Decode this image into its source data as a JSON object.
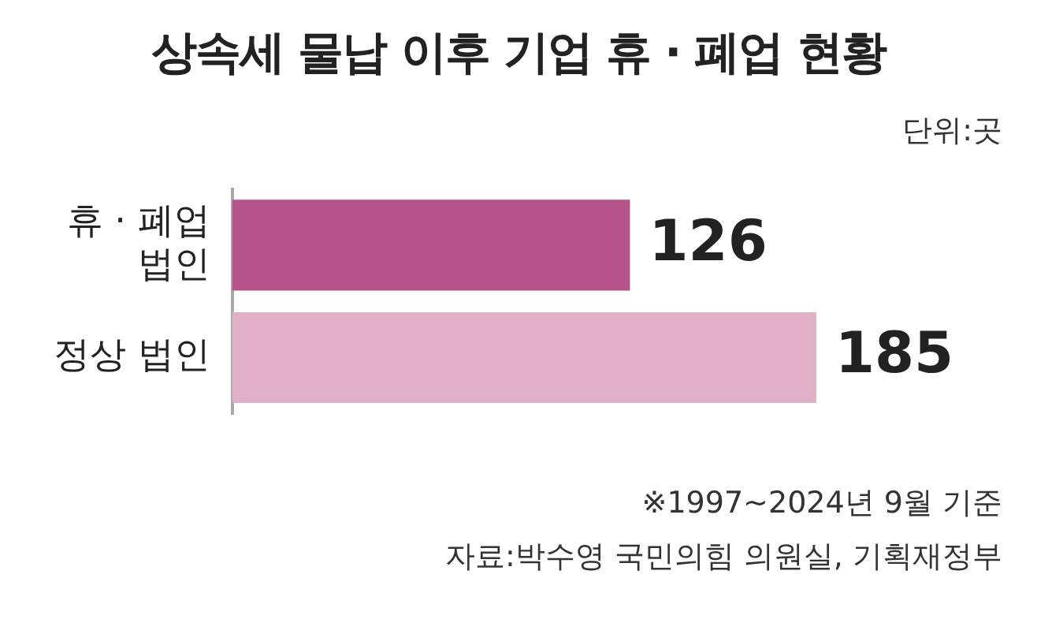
{
  "chart_data": {
    "type": "bar",
    "orientation": "horizontal",
    "title": "상속세 물납 이후 기업 휴 · 폐업 현황",
    "subtitle": "단위:곳",
    "categories": [
      "휴 · 폐업 법인",
      "정상 법인"
    ],
    "values": [
      126,
      185
    ],
    "colors": [
      "#b5538a",
      "#e0b0c6"
    ],
    "tick_labels": "y",
    "data_labels": true,
    "annotations": [
      "※1997~2024년 9월 기준",
      "자료:박수영 국민의힘 의원실, 기획재정부"
    ]
  }
}
